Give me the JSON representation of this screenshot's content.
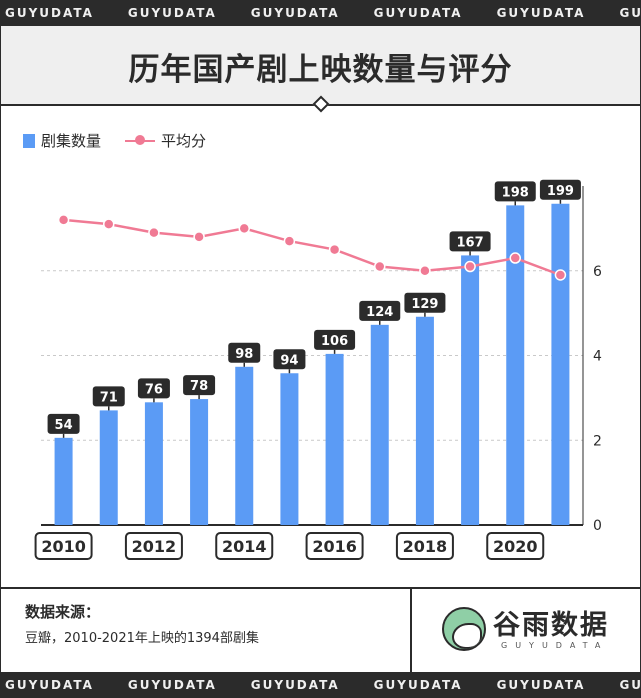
{
  "banner": {
    "word": "GUYUDATA",
    "repeat": 6
  },
  "title": "历年国产剧上映数量与评分",
  "legend": {
    "bars": "剧集数量",
    "line": "平均分"
  },
  "colors": {
    "bar": "#5b9bf5",
    "line": "#f07a94",
    "label_bg": "#2b2b2b",
    "accent": "#7ed6a8"
  },
  "chart_data": {
    "type": "bar",
    "categories": [
      "2010",
      "2011",
      "2012",
      "2013",
      "2014",
      "2015",
      "2016",
      "2017",
      "2018",
      "2019",
      "2020",
      "2021"
    ],
    "xtick_labels": [
      "2010",
      "",
      "2012",
      "",
      "2014",
      "",
      "2016",
      "",
      "2018",
      "",
      "2020",
      ""
    ],
    "series": [
      {
        "name": "剧集数量",
        "type": "bar",
        "values": [
          54,
          71,
          76,
          78,
          98,
          94,
          106,
          124,
          129,
          167,
          198,
          199
        ]
      },
      {
        "name": "平均分",
        "type": "line",
        "axis": "right",
        "values": [
          7.2,
          7.1,
          6.9,
          6.8,
          7.0,
          6.7,
          6.5,
          6.1,
          6.0,
          6.1,
          6.3,
          5.9
        ]
      }
    ],
    "ylim_left": [
      0,
      210
    ],
    "ylim_right": [
      0,
      8
    ],
    "yticks_right": [
      0,
      2,
      4,
      6
    ],
    "grid": "horizontal dashed",
    "legend_position": "top-left"
  },
  "footer": {
    "source_title": "数据来源：",
    "source_text": "豆瓣，2010-2021年上映的1394部剧集",
    "brand": "谷雨数据",
    "brand_sub": "GUYUDATA"
  }
}
